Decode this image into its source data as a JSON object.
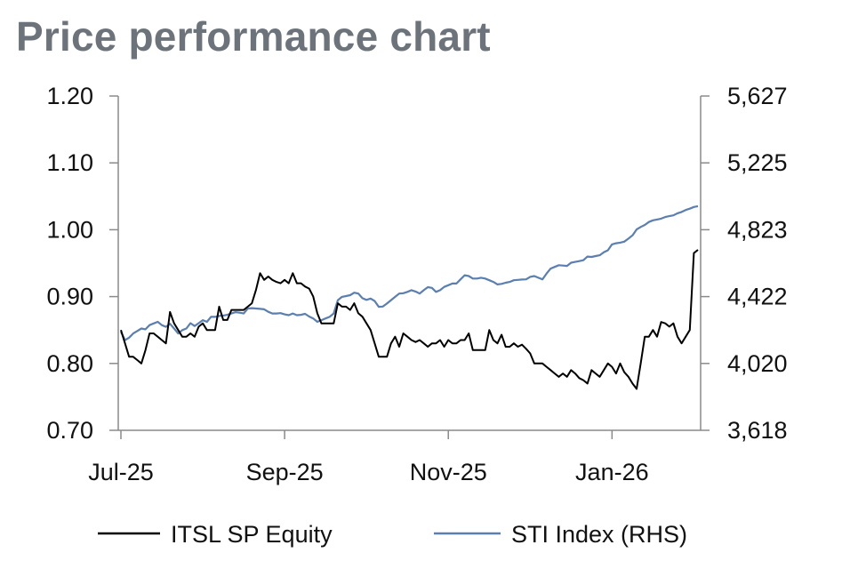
{
  "chart_data": {
    "type": "line",
    "title": "Price performance chart",
    "x_labels": [
      "Jul-25",
      "Sep-25",
      "Nov-25",
      "Jan-26"
    ],
    "x_range": [
      0,
      141
    ],
    "x_label_positions": [
      0,
      40,
      80,
      120
    ],
    "y_left": {
      "ticks": [
        "1.20",
        "1.10",
        "1.00",
        "0.90",
        "0.80",
        "0.70"
      ],
      "range": [
        0.7,
        1.2
      ]
    },
    "y_right": {
      "ticks": [
        "5,627",
        "5,225",
        "4,823",
        "4,422",
        "4,020",
        "3,618"
      ],
      "range": [
        3618,
        5627
      ]
    },
    "series": [
      {
        "name": "ITSL SP Equity",
        "axis": "left",
        "color": "#000000",
        "points": [
          [
            0,
            0.85
          ],
          [
            1,
            0.83
          ],
          [
            2,
            0.81
          ],
          [
            3,
            0.81
          ],
          [
            4,
            0.805
          ],
          [
            5,
            0.8
          ],
          [
            6,
            0.82
          ],
          [
            7,
            0.845
          ],
          [
            8,
            0.845
          ],
          [
            9,
            0.84
          ],
          [
            10,
            0.835
          ],
          [
            11,
            0.83
          ],
          [
            12,
            0.877
          ],
          [
            13,
            0.86
          ],
          [
            14,
            0.85
          ],
          [
            15,
            0.84
          ],
          [
            16,
            0.84
          ],
          [
            17,
            0.845
          ],
          [
            18,
            0.84
          ],
          [
            19,
            0.855
          ],
          [
            20,
            0.86
          ],
          [
            21,
            0.85
          ],
          [
            22,
            0.85
          ],
          [
            23,
            0.85
          ],
          [
            24,
            0.885
          ],
          [
            25,
            0.865
          ],
          [
            26,
            0.865
          ],
          [
            27,
            0.88
          ],
          [
            28,
            0.88
          ],
          [
            29,
            0.88
          ],
          [
            30,
            0.88
          ],
          [
            31,
            0.885
          ],
          [
            32,
            0.89
          ],
          [
            33,
            0.91
          ],
          [
            34,
            0.935
          ],
          [
            35,
            0.925
          ],
          [
            36,
            0.93
          ],
          [
            37,
            0.925
          ],
          [
            38,
            0.922
          ],
          [
            39,
            0.92
          ],
          [
            40,
            0.925
          ],
          [
            41,
            0.92
          ],
          [
            42,
            0.935
          ],
          [
            43,
            0.92
          ],
          [
            44,
            0.92
          ],
          [
            45,
            0.915
          ],
          [
            46,
            0.912
          ],
          [
            47,
            0.9
          ],
          [
            48,
            0.875
          ],
          [
            49,
            0.86
          ],
          [
            50,
            0.86
          ],
          [
            51,
            0.86
          ],
          [
            52,
            0.86
          ],
          [
            53,
            0.89
          ],
          [
            54,
            0.885
          ],
          [
            55,
            0.885
          ],
          [
            56,
            0.88
          ],
          [
            57,
            0.89
          ],
          [
            58,
            0.875
          ],
          [
            59,
            0.87
          ],
          [
            60,
            0.86
          ],
          [
            61,
            0.85
          ],
          [
            62,
            0.83
          ],
          [
            63,
            0.81
          ],
          [
            64,
            0.81
          ],
          [
            65,
            0.81
          ],
          [
            66,
            0.83
          ],
          [
            67,
            0.84
          ],
          [
            68,
            0.825
          ],
          [
            69,
            0.845
          ],
          [
            70,
            0.84
          ],
          [
            71,
            0.835
          ],
          [
            72,
            0.832
          ],
          [
            73,
            0.835
          ],
          [
            74,
            0.83
          ],
          [
            75,
            0.825
          ],
          [
            76,
            0.83
          ],
          [
            77,
            0.83
          ],
          [
            78,
            0.835
          ],
          [
            79,
            0.825
          ],
          [
            80,
            0.835
          ],
          [
            81,
            0.83
          ],
          [
            82,
            0.83
          ],
          [
            83,
            0.835
          ],
          [
            84,
            0.835
          ],
          [
            85,
            0.845
          ],
          [
            86,
            0.82
          ],
          [
            87,
            0.82
          ],
          [
            88,
            0.82
          ],
          [
            89,
            0.82
          ],
          [
            90,
            0.85
          ],
          [
            91,
            0.835
          ],
          [
            92,
            0.83
          ],
          [
            93,
            0.843
          ],
          [
            94,
            0.825
          ],
          [
            95,
            0.825
          ],
          [
            96,
            0.83
          ],
          [
            97,
            0.825
          ],
          [
            98,
            0.828
          ],
          [
            99,
            0.822
          ],
          [
            100,
            0.815
          ],
          [
            101,
            0.8
          ],
          [
            102,
            0.8
          ],
          [
            103,
            0.8
          ],
          [
            104,
            0.795
          ],
          [
            105,
            0.79
          ],
          [
            106,
            0.785
          ],
          [
            107,
            0.78
          ],
          [
            108,
            0.785
          ],
          [
            109,
            0.78
          ],
          [
            110,
            0.79
          ],
          [
            111,
            0.785
          ],
          [
            112,
            0.778
          ],
          [
            113,
            0.775
          ],
          [
            114,
            0.77
          ],
          [
            115,
            0.79
          ],
          [
            116,
            0.785
          ],
          [
            117,
            0.78
          ],
          [
            118,
            0.79
          ],
          [
            119,
            0.8
          ],
          [
            120,
            0.795
          ],
          [
            121,
            0.785
          ],
          [
            122,
            0.8
          ],
          [
            123,
            0.787
          ],
          [
            124,
            0.78
          ],
          [
            125,
            0.77
          ],
          [
            126,
            0.762
          ],
          [
            127,
            0.8
          ],
          [
            128,
            0.84
          ],
          [
            129,
            0.84
          ],
          [
            130,
            0.85
          ],
          [
            131,
            0.84
          ],
          [
            132,
            0.862
          ],
          [
            133,
            0.86
          ],
          [
            134,
            0.855
          ],
          [
            135,
            0.86
          ],
          [
            136,
            0.84
          ],
          [
            137,
            0.83
          ],
          [
            138,
            0.84
          ],
          [
            139,
            0.85
          ],
          [
            140,
            0.965
          ],
          [
            141,
            0.97
          ]
        ]
      },
      {
        "name": "STI Index (RHS)",
        "axis": "right",
        "color": "#5a7fb0",
        "points": [
          [
            0,
            4210
          ],
          [
            1,
            4160
          ],
          [
            2,
            4175
          ],
          [
            3,
            4200
          ],
          [
            4,
            4215
          ],
          [
            5,
            4230
          ],
          [
            6,
            4225
          ],
          [
            7,
            4250
          ],
          [
            8,
            4260
          ],
          [
            9,
            4270
          ],
          [
            10,
            4250
          ],
          [
            11,
            4240
          ],
          [
            12,
            4258
          ],
          [
            13,
            4230
          ],
          [
            14,
            4200
          ],
          [
            15,
            4220
          ],
          [
            16,
            4230
          ],
          [
            17,
            4262
          ],
          [
            18,
            4245
          ],
          [
            19,
            4262
          ],
          [
            20,
            4280
          ],
          [
            21,
            4270
          ],
          [
            22,
            4300
          ],
          [
            23,
            4300
          ],
          [
            24,
            4305
          ],
          [
            25,
            4308
          ],
          [
            26,
            4312
          ],
          [
            27,
            4320
          ],
          [
            28,
            4328
          ],
          [
            29,
            4325
          ],
          [
            30,
            4320
          ],
          [
            31,
            4350
          ],
          [
            32,
            4352
          ],
          [
            33,
            4350
          ],
          [
            34,
            4348
          ],
          [
            35,
            4345
          ],
          [
            36,
            4330
          ],
          [
            37,
            4320
          ],
          [
            38,
            4320
          ],
          [
            39,
            4322
          ],
          [
            40,
            4315
          ],
          [
            41,
            4310
          ],
          [
            42,
            4320
          ],
          [
            43,
            4310
          ],
          [
            44,
            4312
          ],
          [
            45,
            4318
          ],
          [
            46,
            4302
          ],
          [
            47,
            4290
          ],
          [
            48,
            4270
          ],
          [
            49,
            4280
          ],
          [
            50,
            4290
          ],
          [
            51,
            4300
          ],
          [
            52,
            4320
          ],
          [
            53,
            4400
          ],
          [
            54,
            4420
          ],
          [
            55,
            4425
          ],
          [
            56,
            4430
          ],
          [
            57,
            4445
          ],
          [
            58,
            4440
          ],
          [
            59,
            4412
          ],
          [
            60,
            4402
          ],
          [
            61,
            4410
          ],
          [
            62,
            4395
          ],
          [
            63,
            4360
          ],
          [
            64,
            4362
          ],
          [
            65,
            4380
          ],
          [
            66,
            4400
          ],
          [
            67,
            4420
          ],
          [
            68,
            4440
          ],
          [
            69,
            4442
          ],
          [
            70,
            4450
          ],
          [
            71,
            4460
          ],
          [
            72,
            4452
          ],
          [
            73,
            4440
          ],
          [
            74,
            4460
          ],
          [
            75,
            4478
          ],
          [
            76,
            4474
          ],
          [
            77,
            4450
          ],
          [
            78,
            4460
          ],
          [
            79,
            4480
          ],
          [
            80,
            4490
          ],
          [
            81,
            4500
          ],
          [
            82,
            4500
          ],
          [
            83,
            4525
          ],
          [
            84,
            4550
          ],
          [
            85,
            4545
          ],
          [
            86,
            4530
          ],
          [
            87,
            4530
          ],
          [
            88,
            4535
          ],
          [
            89,
            4530
          ],
          [
            90,
            4520
          ],
          [
            91,
            4510
          ],
          [
            92,
            4495
          ],
          [
            93,
            4498
          ],
          [
            94,
            4505
          ],
          [
            95,
            4510
          ],
          [
            96,
            4520
          ],
          [
            97,
            4522
          ],
          [
            98,
            4524
          ],
          [
            99,
            4525
          ],
          [
            100,
            4540
          ],
          [
            101,
            4545
          ],
          [
            102,
            4535
          ],
          [
            103,
            4525
          ],
          [
            104,
            4560
          ],
          [
            105,
            4590
          ],
          [
            106,
            4600
          ],
          [
            107,
            4610
          ],
          [
            108,
            4608
          ],
          [
            109,
            4606
          ],
          [
            110,
            4625
          ],
          [
            111,
            4630
          ],
          [
            112,
            4635
          ],
          [
            113,
            4640
          ],
          [
            114,
            4662
          ],
          [
            115,
            4660
          ],
          [
            116,
            4665
          ],
          [
            117,
            4670
          ],
          [
            118,
            4688
          ],
          [
            119,
            4700
          ],
          [
            120,
            4735
          ],
          [
            121,
            4742
          ],
          [
            122,
            4746
          ],
          [
            123,
            4752
          ],
          [
            124,
            4770
          ],
          [
            125,
            4790
          ],
          [
            126,
            4825
          ],
          [
            127,
            4840
          ],
          [
            128,
            4852
          ],
          [
            129,
            4870
          ],
          [
            130,
            4880
          ],
          [
            131,
            4885
          ],
          [
            132,
            4890
          ],
          [
            133,
            4900
          ],
          [
            134,
            4905
          ],
          [
            135,
            4910
          ],
          [
            136,
            4922
          ],
          [
            137,
            4930
          ],
          [
            138,
            4942
          ],
          [
            139,
            4950
          ],
          [
            140,
            4960
          ],
          [
            141,
            4965
          ]
        ]
      }
    ],
    "legend": {
      "position": "bottom"
    }
  }
}
